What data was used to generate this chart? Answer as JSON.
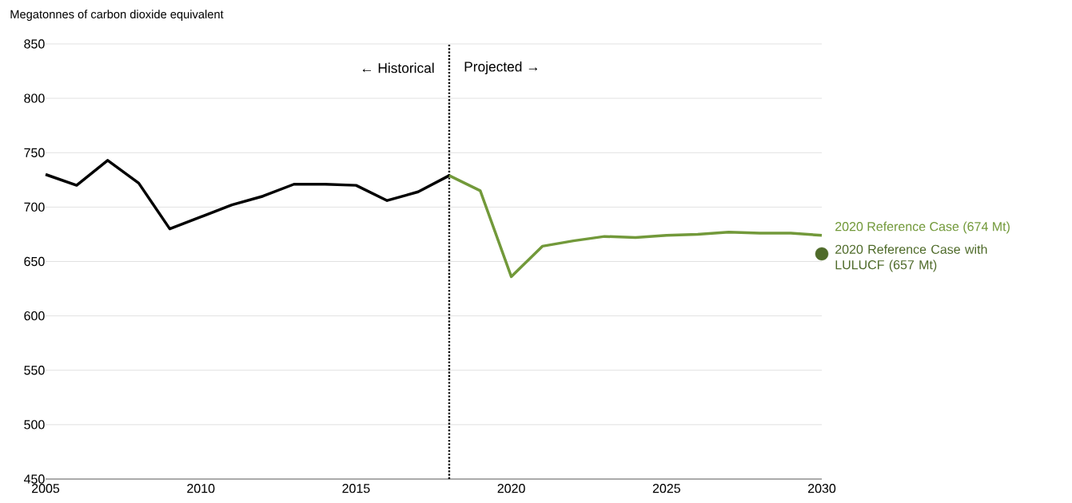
{
  "chart_data": {
    "type": "line",
    "ylabel": "Megatonnes of carbon dioxide equivalent",
    "xlim": [
      2005,
      2030
    ],
    "ylim": [
      450,
      850
    ],
    "xticks": [
      2005,
      2010,
      2015,
      2020,
      2025,
      2030
    ],
    "yticks": [
      450,
      500,
      550,
      600,
      650,
      700,
      750,
      800,
      850
    ],
    "grid": "y",
    "series": [
      {
        "color": "#000000",
        "x": [
          2005,
          2006,
          2007,
          2008,
          2009,
          2010,
          2011,
          2012,
          2013,
          2014,
          2015,
          2016,
          2017,
          2018
        ],
        "values": [
          730,
          720,
          743,
          722,
          680,
          691,
          702,
          710,
          721,
          721,
          720,
          706,
          714,
          729
        ]
      },
      {
        "name": "2020 Reference Case (674 Mt)",
        "color": "#72993a",
        "x": [
          2018,
          2019,
          2020,
          2021,
          2022,
          2023,
          2024,
          2025,
          2026,
          2027,
          2028,
          2029,
          2030
        ],
        "values": [
          729,
          715,
          636,
          664,
          669,
          673,
          672,
          674,
          675,
          677,
          676,
          676,
          674
        ]
      },
      {
        "name": "2020 Reference Case with LULUCF (657 Mt)",
        "type": "scatter",
        "marker": "circle",
        "color": "#4f6b2a",
        "x": [
          2030
        ],
        "values": [
          657
        ]
      }
    ],
    "ref_lines": [
      {
        "axis": "x",
        "value": 2018,
        "line_style": "dotted",
        "color": "#000000"
      }
    ],
    "annotations": [
      "←  Historical",
      "Projected  →"
    ]
  }
}
